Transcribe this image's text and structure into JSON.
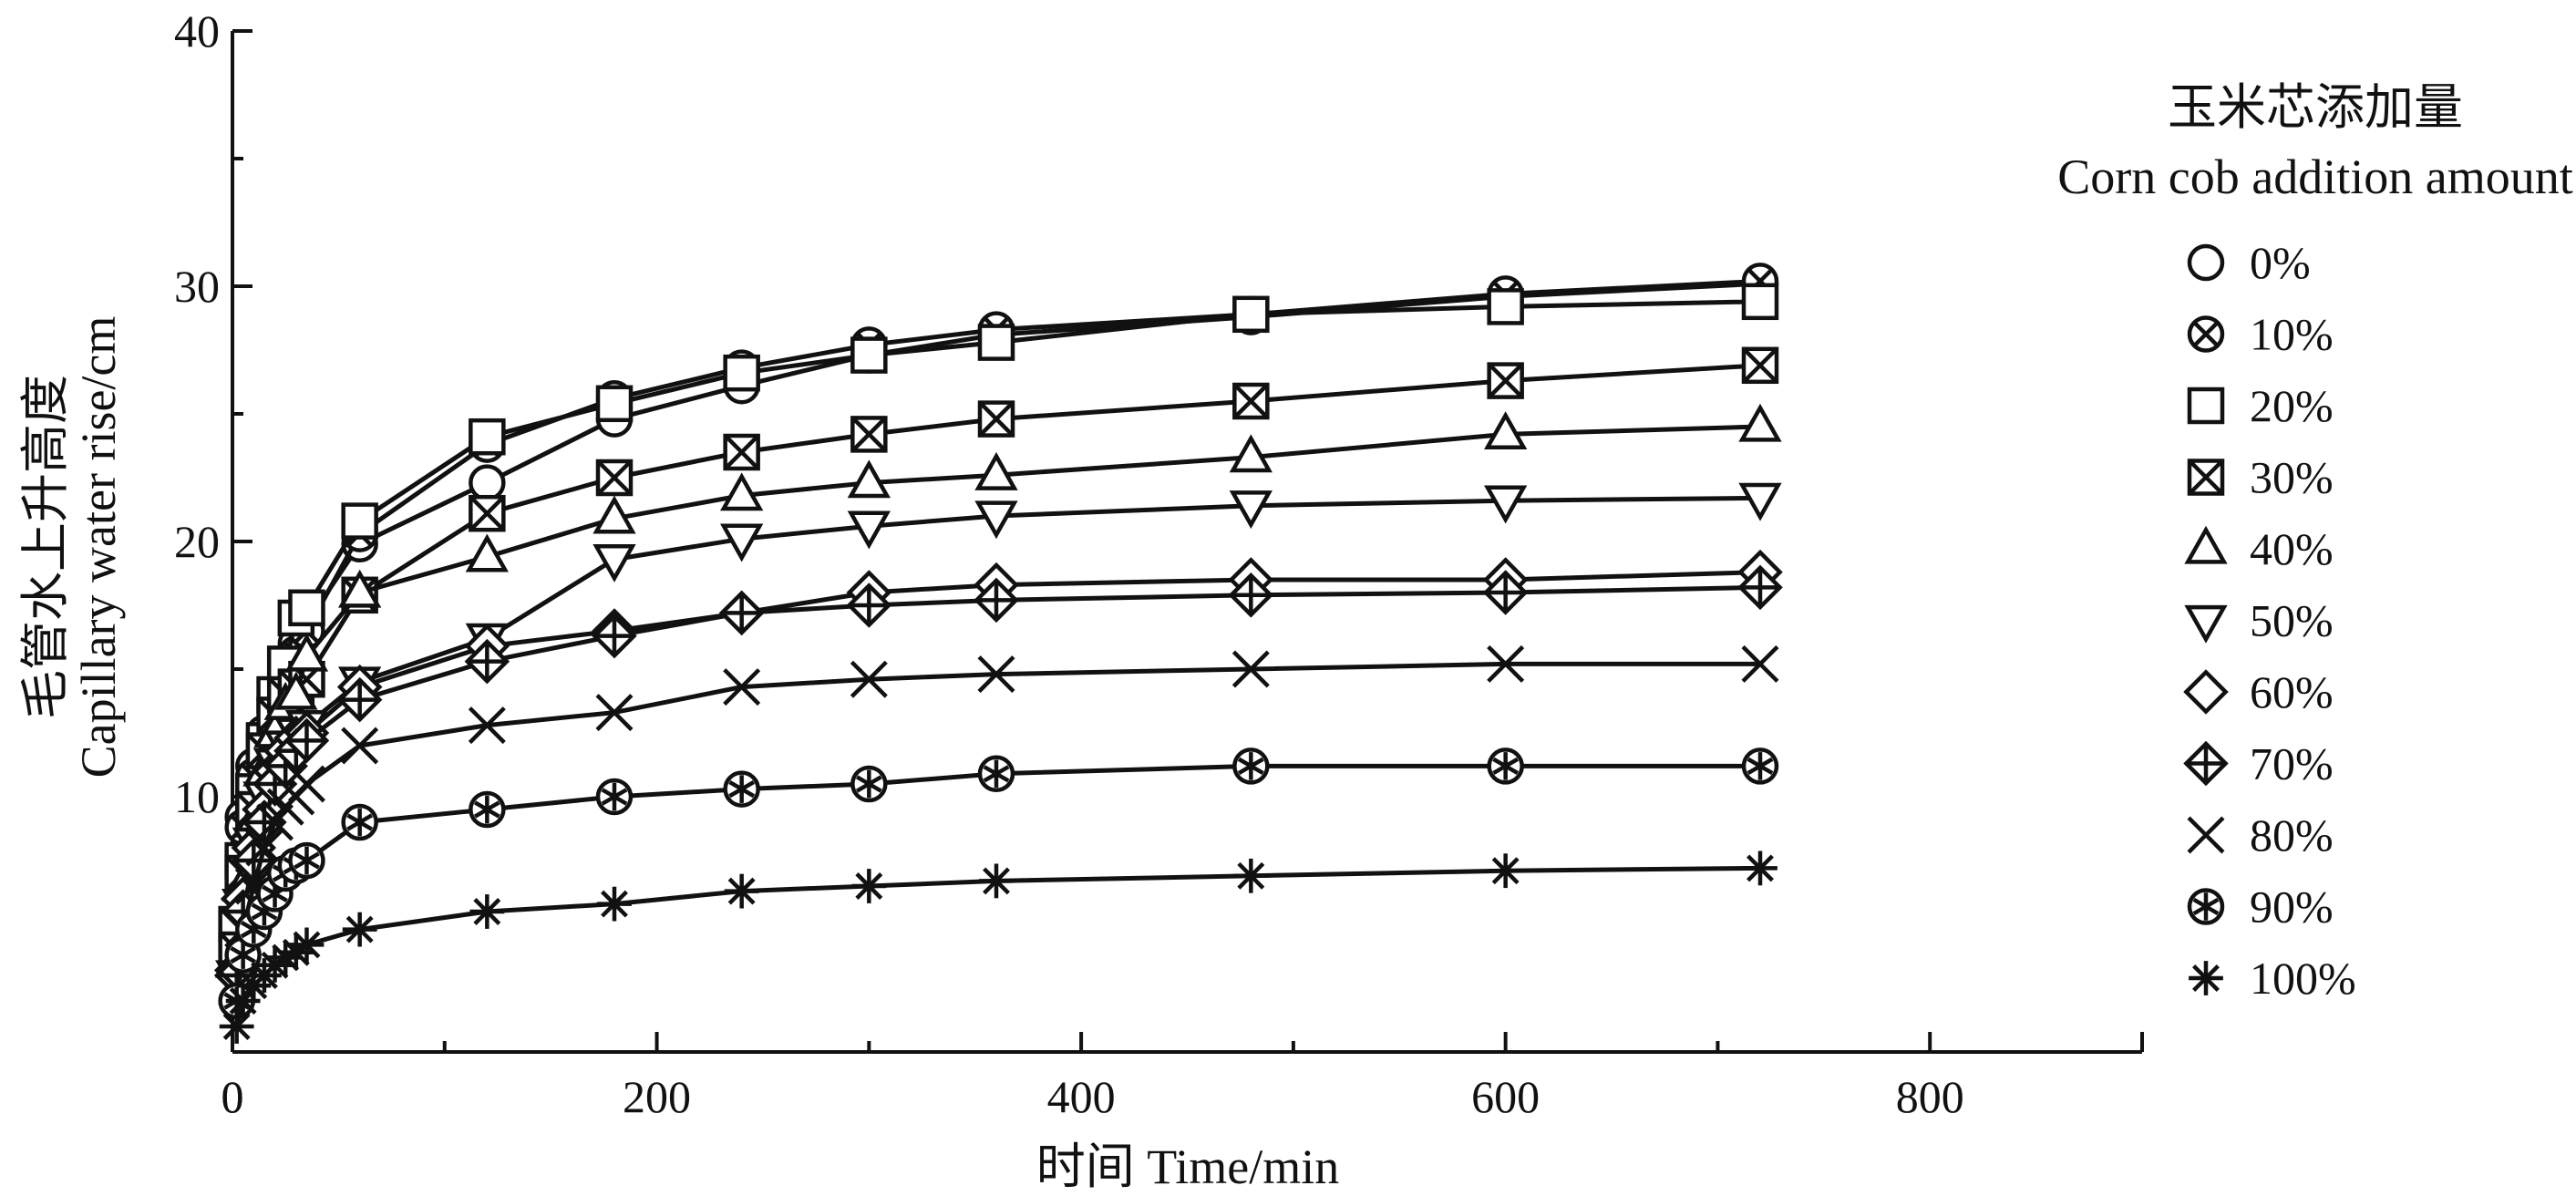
{
  "chart_data": {
    "type": "line",
    "title": "",
    "xlabel": "时间 Time/min",
    "ylabel_lines": [
      "毛管水上升高度",
      "Capillary water rise/cm"
    ],
    "xlim": [
      0,
      900
    ],
    "ylim": [
      0,
      40
    ],
    "xticks": [
      0,
      200,
      400,
      600,
      800
    ],
    "yticks": [
      10,
      20,
      30,
      40
    ],
    "grid": false,
    "legend": {
      "title_lines": [
        "玉米芯添加量",
        "Corn cob addition amount"
      ],
      "position": "right"
    },
    "x": [
      2,
      5,
      10,
      15,
      20,
      25,
      30,
      35,
      60,
      120,
      180,
      240,
      300,
      360,
      480,
      600,
      720
    ],
    "series": [
      {
        "name": "0%",
        "marker": "circle",
        "values": [
          4.2,
          9.2,
          11.2,
          12.5,
          13.8,
          14.8,
          16.0,
          16.8,
          19.9,
          22.3,
          24.8,
          26.1,
          27.3,
          28.1,
          28.8,
          29.6,
          30.1
        ]
      },
      {
        "name": "10%",
        "marker": "circle-x",
        "values": [
          4.5,
          8.8,
          10.8,
          12.1,
          13.5,
          14.5,
          15.6,
          16.5,
          20.3,
          23.8,
          25.6,
          26.8,
          27.7,
          28.3,
          28.9,
          29.7,
          30.2
        ]
      },
      {
        "name": "20%",
        "marker": "square",
        "values": [
          5.0,
          7.5,
          10.2,
          12.2,
          14.0,
          15.2,
          17.0,
          17.4,
          20.8,
          24.1,
          25.4,
          26.6,
          27.3,
          27.8,
          28.9,
          29.2,
          29.4
        ]
      },
      {
        "name": "30%",
        "marker": "square-x",
        "values": [
          4.0,
          7.0,
          9.5,
          11.8,
          13.2,
          14.0,
          14.3,
          14.6,
          17.9,
          21.1,
          22.5,
          23.5,
          24.2,
          24.8,
          25.5,
          26.3,
          26.9
        ]
      },
      {
        "name": "40%",
        "marker": "triangle-up",
        "values": [
          3.5,
          6.5,
          9.0,
          11.0,
          12.5,
          13.6,
          14.0,
          15.5,
          18.0,
          19.4,
          20.9,
          21.8,
          22.3,
          22.6,
          23.3,
          24.2,
          24.5
        ]
      },
      {
        "name": "50%",
        "marker": "triangle-down",
        "values": [
          3.0,
          5.8,
          8.2,
          10.0,
          11.3,
          12.0,
          12.5,
          12.8,
          14.5,
          16.2,
          19.3,
          20.1,
          20.6,
          21.0,
          21.4,
          21.6,
          21.7
        ]
      },
      {
        "name": "60%",
        "marker": "diamond",
        "values": [
          3.2,
          6.0,
          8.0,
          9.5,
          11.0,
          11.8,
          12.3,
          12.5,
          14.3,
          15.9,
          16.5,
          17.2,
          18.0,
          18.3,
          18.5,
          18.5,
          18.8
        ]
      },
      {
        "name": "70%",
        "marker": "diamond-plus",
        "values": [
          3.0,
          5.5,
          7.5,
          9.0,
          10.5,
          11.2,
          11.8,
          12.2,
          13.8,
          15.3,
          16.3,
          17.2,
          17.5,
          17.7,
          17.9,
          18.0,
          18.2
        ]
      },
      {
        "name": "80%",
        "marker": "x",
        "values": [
          2.5,
          4.8,
          6.5,
          8.0,
          9.0,
          9.6,
          10.0,
          10.5,
          12.0,
          12.8,
          13.3,
          14.3,
          14.6,
          14.8,
          15.0,
          15.2,
          15.2
        ]
      },
      {
        "name": "90%",
        "marker": "circle-asterisk",
        "values": [
          2.0,
          3.8,
          4.8,
          5.5,
          6.2,
          7.0,
          7.3,
          7.5,
          9.0,
          9.5,
          10.0,
          10.3,
          10.5,
          10.9,
          11.2,
          11.2,
          11.2
        ]
      },
      {
        "name": "100%",
        "marker": "asterisk",
        "values": [
          1.0,
          2.0,
          2.6,
          3.0,
          3.4,
          3.7,
          3.9,
          4.2,
          4.8,
          5.5,
          5.8,
          6.3,
          6.5,
          6.7,
          6.9,
          7.1,
          7.2
        ]
      }
    ]
  }
}
